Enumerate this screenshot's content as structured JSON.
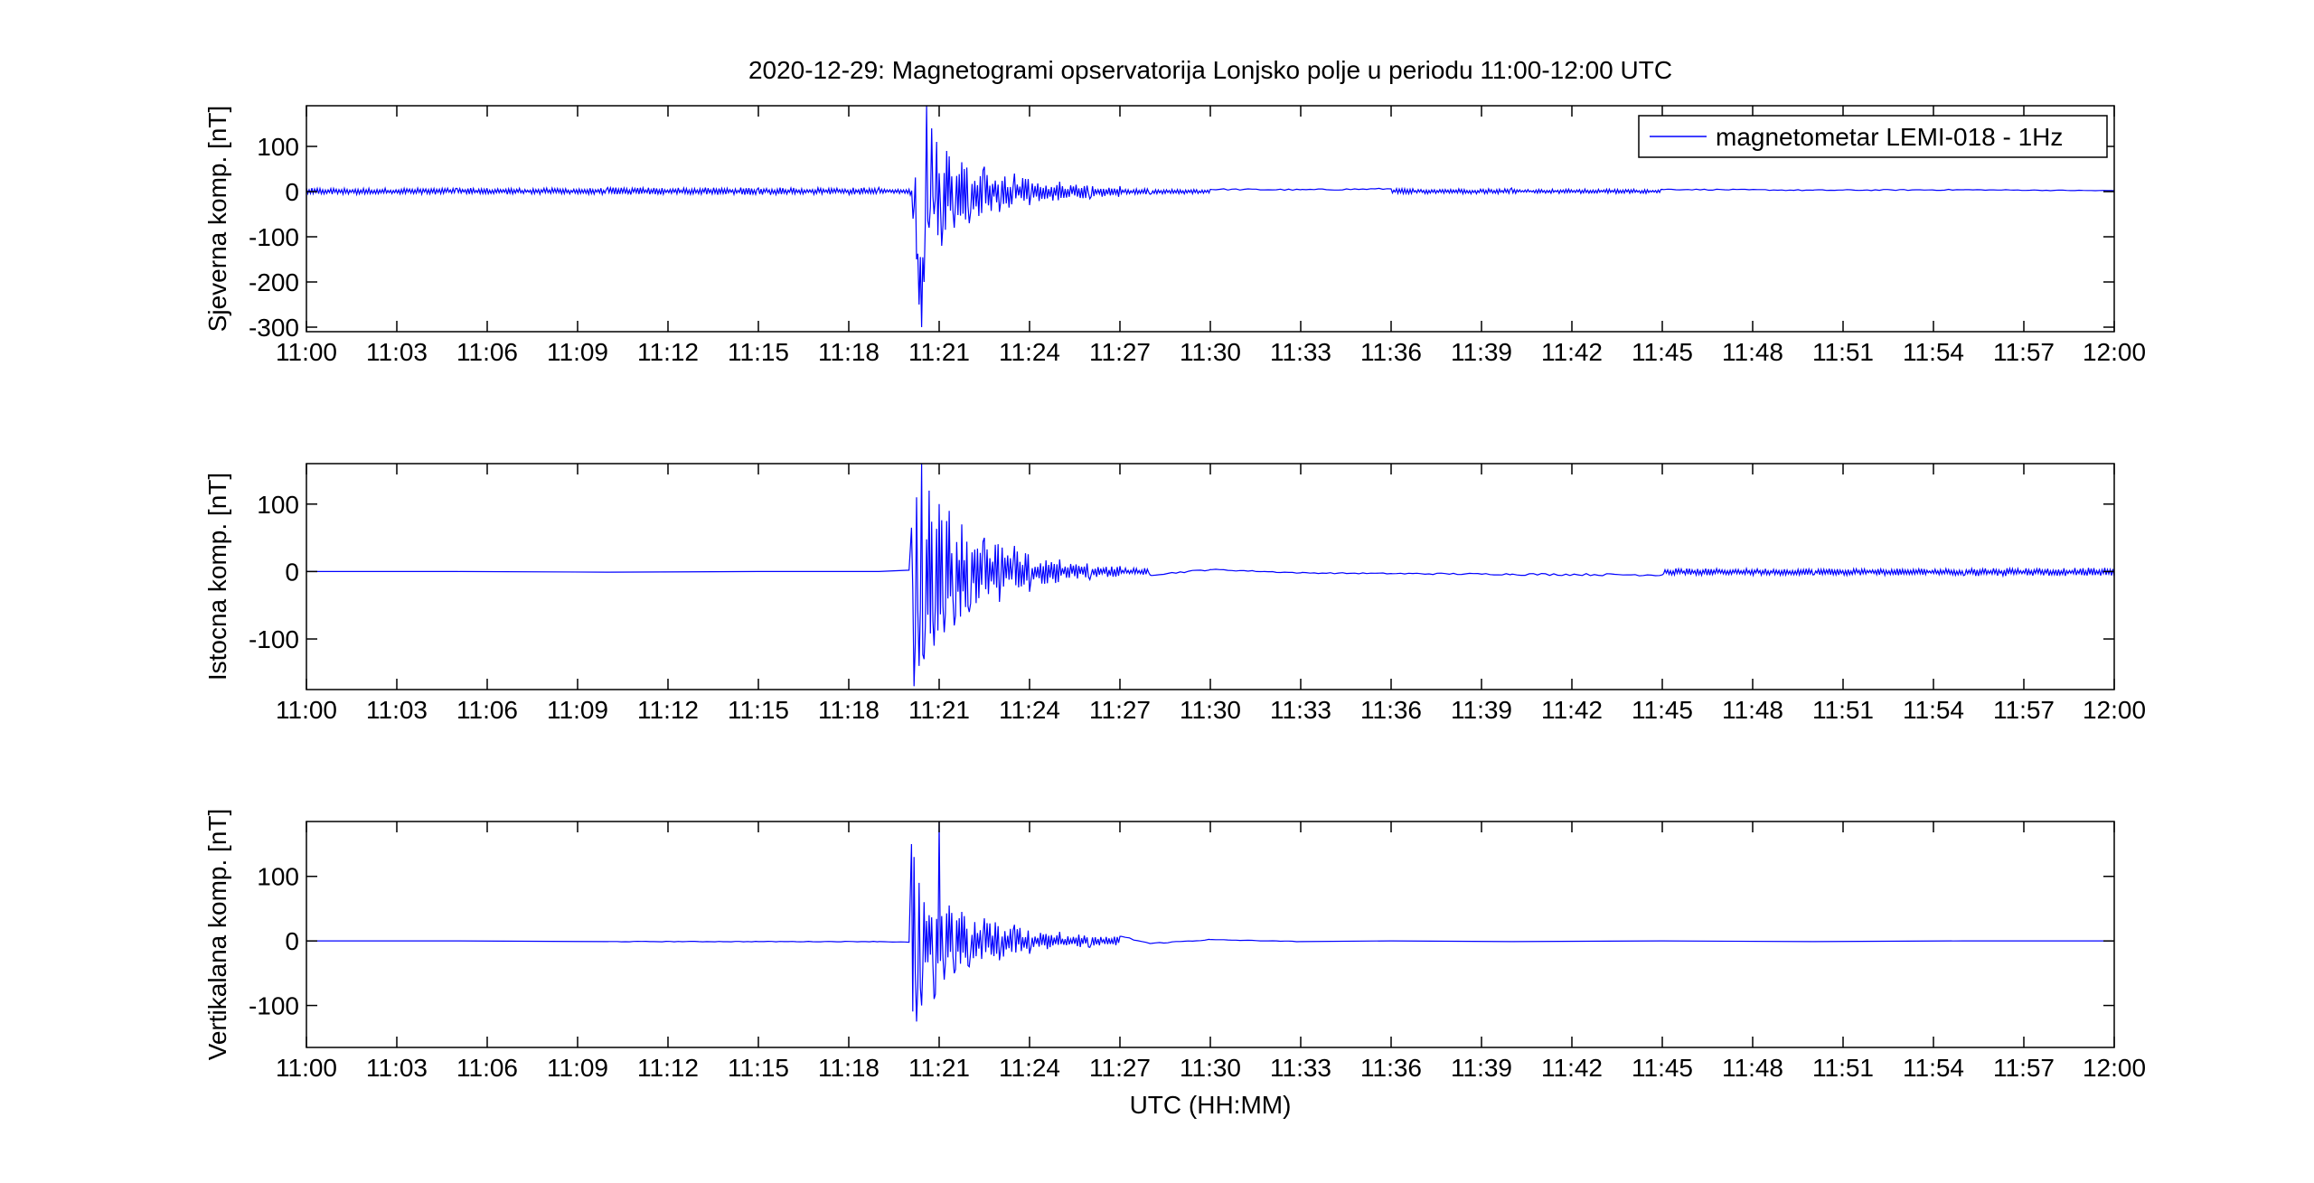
{
  "figure": {
    "title": "2020-12-29: Magnetogrami opservatorija Lonjsko polje u periodu 11:00-12:00 UTC",
    "xlabel": "UTC (HH:MM)",
    "legend_label": "magnetometar LEMI-018 - 1Hz",
    "legend_position": "top-right (first panel)",
    "line_color": "#0000ff"
  },
  "chart_data": [
    {
      "type": "line",
      "ylabel": "Sjeverna komp. [nT]",
      "xlim": [
        "11:00",
        "12:00"
      ],
      "ylim": [
        -310,
        190
      ],
      "xticks": [
        "11:00",
        "11:03",
        "11:06",
        "11:09",
        "11:12",
        "11:15",
        "11:18",
        "11:21",
        "11:24",
        "11:27",
        "11:30",
        "11:33",
        "11:36",
        "11:39",
        "11:42",
        "11:45",
        "11:48",
        "11:51",
        "11:54",
        "11:57",
        "12:00"
      ],
      "yticks": [
        -300,
        -200,
        -100,
        0,
        100
      ],
      "series": [
        {
          "name": "magnetometar LEMI-018 - 1Hz",
          "color": "#0000ff",
          "x": [
            "11:00:00",
            "11:05:00",
            "11:10:00",
            "11:15:00",
            "11:19:00",
            "11:20:00",
            "11:20:08",
            "11:20:15",
            "11:20:20",
            "11:20:25",
            "11:20:30",
            "11:20:35",
            "11:20:40",
            "11:20:45",
            "11:20:50",
            "11:20:55",
            "11:21:05",
            "11:21:15",
            "11:21:30",
            "11:21:45",
            "11:22:00",
            "11:22:30",
            "11:23:00",
            "11:23:30",
            "11:24:00",
            "11:25:00",
            "11:26:00",
            "11:27:00",
            "11:28:00",
            "11:30:00",
            "11:33:00",
            "11:36:00",
            "11:40:00",
            "11:45:00",
            "11:50:00",
            "11:55:00",
            "12:00:00"
          ],
          "y": [
            8,
            7,
            9,
            8,
            9,
            5,
            -60,
            -150,
            -250,
            -300,
            -200,
            190,
            -80,
            140,
            -50,
            110,
            -120,
            90,
            -80,
            65,
            -70,
            55,
            -45,
            40,
            -30,
            22,
            -16,
            12,
            -6,
            5,
            4,
            6,
            8,
            5,
            3,
            4,
            2
          ]
        }
      ]
    },
    {
      "type": "line",
      "ylabel": "Istocna komp. [nT]",
      "xlim": [
        "11:00",
        "12:00"
      ],
      "ylim": [
        -175,
        160
      ],
      "xticks": [
        "11:00",
        "11:03",
        "11:06",
        "11:09",
        "11:12",
        "11:15",
        "11:18",
        "11:21",
        "11:24",
        "11:27",
        "11:30",
        "11:33",
        "11:36",
        "11:39",
        "11:42",
        "11:45",
        "11:48",
        "11:51",
        "11:54",
        "11:57",
        "12:00"
      ],
      "yticks": [
        -100,
        0,
        100
      ],
      "series": [
        {
          "name": "magnetometar LEMI-018 - 1Hz",
          "color": "#0000ff",
          "x": [
            "11:00:00",
            "11:05:00",
            "11:10:00",
            "11:15:00",
            "11:19:00",
            "11:20:00",
            "11:20:05",
            "11:20:10",
            "11:20:15",
            "11:20:20",
            "11:20:25",
            "11:20:30",
            "11:20:40",
            "11:20:50",
            "11:21:00",
            "11:21:10",
            "11:21:20",
            "11:21:30",
            "11:21:45",
            "11:22:00",
            "11:22:30",
            "11:23:00",
            "11:23:30",
            "11:24:00",
            "11:25:00",
            "11:26:00",
            "11:27:00",
            "11:28:00",
            "11:30:00",
            "11:33:00",
            "11:36:00",
            "11:40:00",
            "11:45:00",
            "11:50:00",
            "11:55:00",
            "12:00:00"
          ],
          "y": [
            0,
            0,
            -1,
            0,
            0,
            2,
            65,
            -170,
            110,
            -140,
            160,
            -130,
            120,
            -110,
            100,
            -90,
            90,
            -80,
            70,
            -60,
            50,
            -45,
            38,
            -30,
            18,
            -12,
            8,
            -5,
            3,
            -2,
            -3,
            -4,
            -5,
            -5,
            -6,
            -7
          ]
        }
      ]
    },
    {
      "type": "line",
      "ylabel": "Vertikalana komp. [nT]",
      "xlim": [
        "11:00",
        "12:00"
      ],
      "ylim": [
        -165,
        185
      ],
      "xticks": [
        "11:00",
        "11:03",
        "11:06",
        "11:09",
        "11:12",
        "11:15",
        "11:18",
        "11:21",
        "11:24",
        "11:27",
        "11:30",
        "11:33",
        "11:36",
        "11:39",
        "11:42",
        "11:45",
        "11:48",
        "11:51",
        "11:54",
        "11:57",
        "12:00"
      ],
      "yticks": [
        -100,
        0,
        100
      ],
      "series": [
        {
          "name": "magnetometar LEMI-018 - 1Hz",
          "color": "#0000ff",
          "x": [
            "11:00:00",
            "11:05:00",
            "11:10:00",
            "11:15:00",
            "11:19:00",
            "11:20:00",
            "11:20:05",
            "11:20:10",
            "11:20:15",
            "11:20:20",
            "11:20:25",
            "11:20:30",
            "11:20:40",
            "11:20:50",
            "11:21:00",
            "11:21:10",
            "11:21:20",
            "11:21:30",
            "11:21:45",
            "11:22:00",
            "11:22:30",
            "11:23:00",
            "11:23:30",
            "11:24:00",
            "11:25:00",
            "11:26:00",
            "11:27:00",
            "11:28:00",
            "11:30:00",
            "11:33:00",
            "11:36:00",
            "11:40:00",
            "11:45:00",
            "11:50:00",
            "11:55:00",
            "12:00:00"
          ],
          "y": [
            0,
            0,
            -1,
            -1,
            -1,
            -2,
            150,
            130,
            -125,
            90,
            -100,
            60,
            40,
            -90,
            185,
            -60,
            55,
            -50,
            45,
            -40,
            35,
            -30,
            25,
            -20,
            14,
            -10,
            7,
            -4,
            2,
            -1,
            0,
            -1,
            0,
            -1,
            0,
            0
          ]
        }
      ]
    }
  ]
}
